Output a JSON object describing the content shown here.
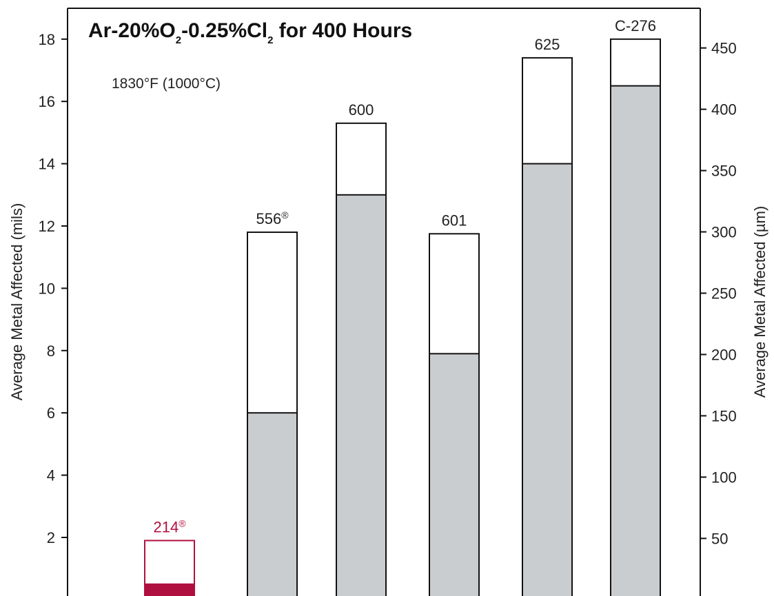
{
  "chart_data": {
    "type": "bar",
    "title": "Ar-20%O2-0.25%Cl2 for 400 Hours",
    "title_parts": {
      "a": "Ar-20%O",
      "sub1": "2",
      "b": "-0.25%Cl",
      "sub2": "2",
      "c": " for 400 Hours"
    },
    "subtitle": "1830°F (1000°C)",
    "ylabel": "Average Metal Affected (mils)",
    "ylabel_right": "Average Metal Affected (µm)",
    "ylim": [
      0,
      18.6
    ],
    "yticks": [
      "2",
      "4",
      "6",
      "8",
      "10",
      "12",
      "14",
      "16",
      "18"
    ],
    "yticks_right": [
      "50",
      "100",
      "150",
      "200",
      "250",
      "300",
      "350",
      "400",
      "450"
    ],
    "yticks_right_values": [
      50,
      100,
      150,
      200,
      250,
      300,
      350,
      400,
      450
    ],
    "mils_to_um": 25.4,
    "categories": [
      "214®",
      "556®",
      "600",
      "601",
      "625",
      "C-276"
    ],
    "series": [
      {
        "values": [
          0.5,
          6.0,
          13.0,
          7.9,
          14.0,
          16.5
        ]
      },
      {
        "values": [
          1.9,
          11.8,
          15.3,
          11.75,
          17.4,
          18.0
        ]
      }
    ],
    "colors": {
      "highlight": "#b0103f",
      "inner_fill": "#c9cdd0",
      "outline": "#111111",
      "text": "#222222"
    },
    "highlight_category": "214®"
  }
}
